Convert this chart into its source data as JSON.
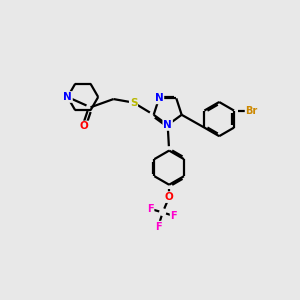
{
  "bg_color": "#e8e8e8",
  "bond_color": "#000000",
  "atom_colors": {
    "N": "#0000ff",
    "O": "#ff0000",
    "S": "#b8b800",
    "F": "#ff00cc",
    "Br": "#cc8800",
    "C": "#000000"
  },
  "figsize": [
    3.0,
    3.0
  ],
  "dpi": 100,
  "lw": 1.6,
  "off": 0.06
}
